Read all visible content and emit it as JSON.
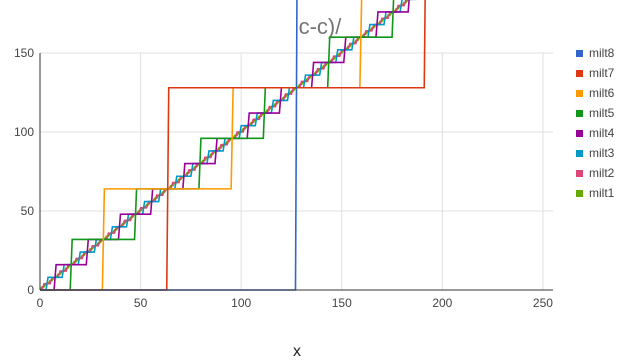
{
  "chart_data": {
    "type": "line",
    "title": "c-c)/",
    "xlabel": "x",
    "ylabel": "",
    "xlim": [
      0,
      255
    ],
    "ylim": [
      0,
      150
    ],
    "x_ticks": [
      0,
      50,
      100,
      150,
      200,
      250
    ],
    "y_ticks": [
      0,
      50,
      100,
      150
    ],
    "grid": true,
    "legend_position": "right",
    "x": [
      0,
      255
    ],
    "series": [
      {
        "name": "milt8",
        "color": "#3366cc",
        "bit": 7
      },
      {
        "name": "milt7",
        "color": "#dc3912",
        "bit": 6
      },
      {
        "name": "milt6",
        "color": "#ff9900",
        "bit": 5
      },
      {
        "name": "milt5",
        "color": "#109618",
        "bit": 4
      },
      {
        "name": "milt4",
        "color": "#990099",
        "bit": 3
      },
      {
        "name": "milt3",
        "color": "#0099c6",
        "bit": 2
      },
      {
        "name": "milt2",
        "color": "#dd4477",
        "bit": 1
      },
      {
        "name": "milt1",
        "color": "#66aa00",
        "bit": 0
      }
    ]
  }
}
